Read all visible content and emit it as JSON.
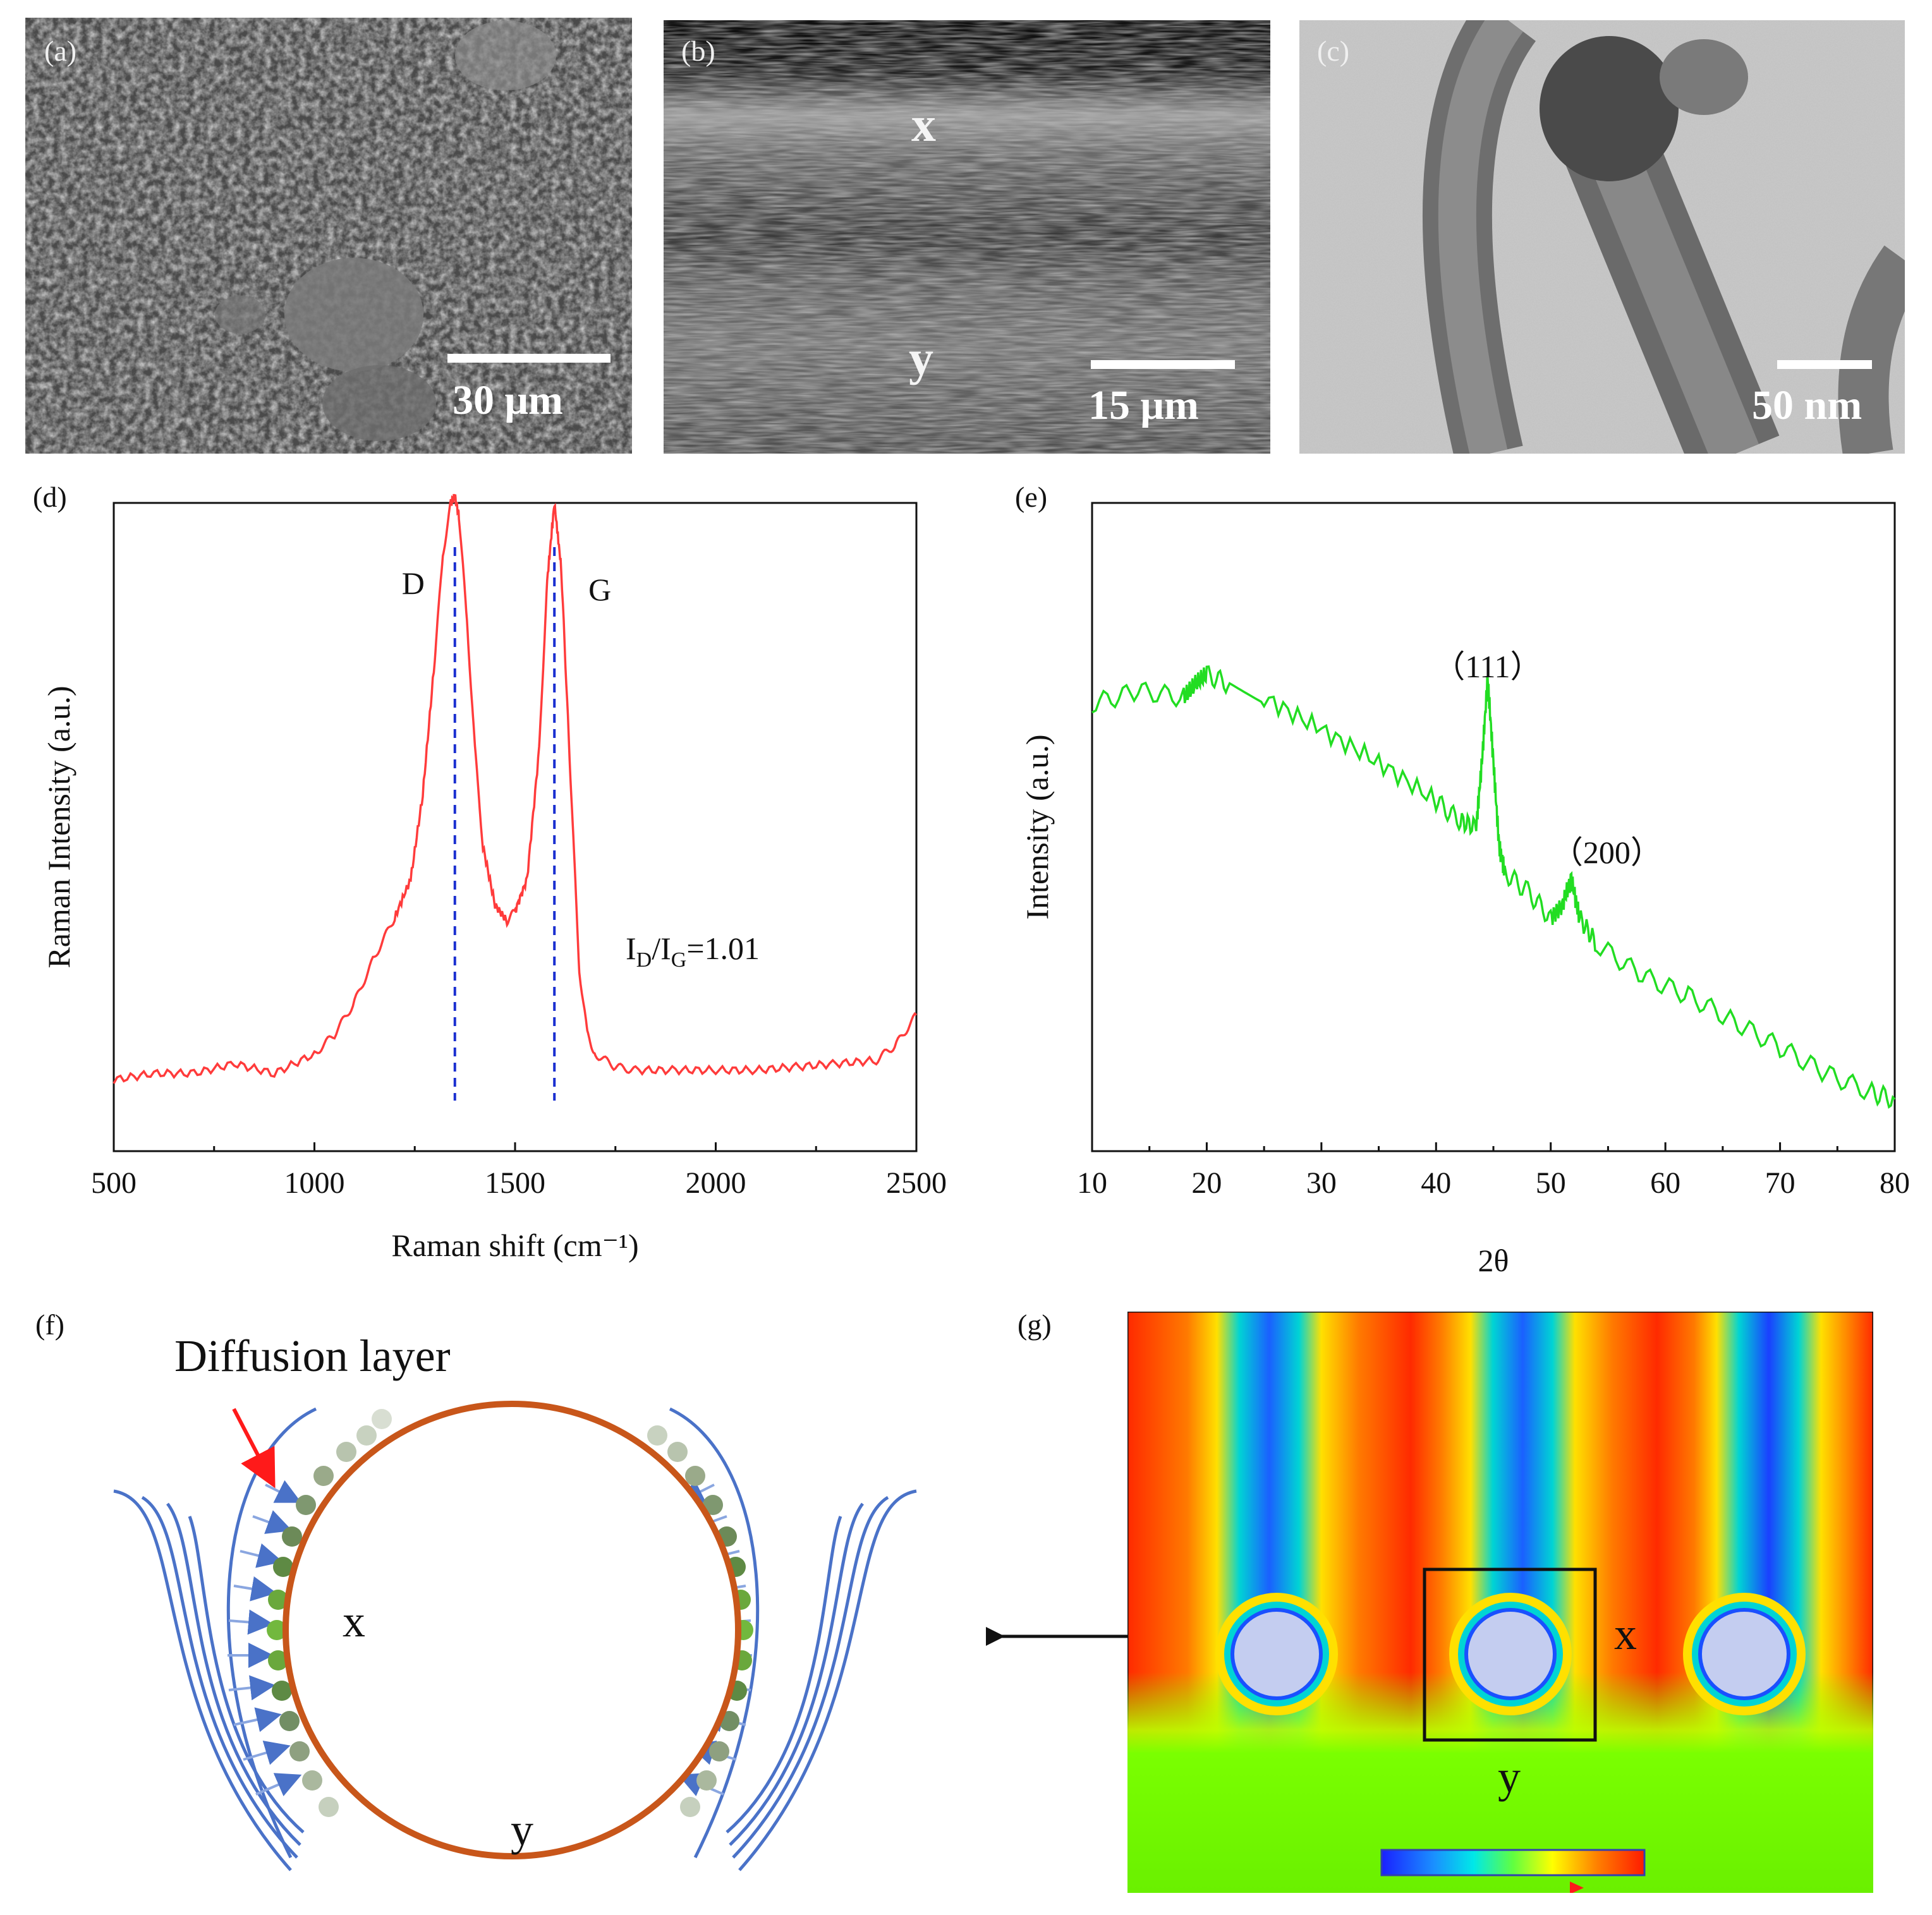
{
  "panels": {
    "a": {
      "label": "(a)",
      "scale": "30 μm"
    },
    "b": {
      "label": "(b)",
      "scale": "15 μm",
      "top_mark": "x",
      "bottom_mark": "y"
    },
    "c": {
      "label": "(c)",
      "scale": "50 nm"
    },
    "d": {
      "label": "(d)"
    },
    "e": {
      "label": "(e)"
    },
    "f": {
      "label": "(f)",
      "title": "Diffusion layer",
      "inner_mark": "x",
      "bottom_mark": "y"
    },
    "g": {
      "label": "(g)",
      "right_mark": "x",
      "bottom_mark": "y"
    }
  },
  "colors": {
    "raman_line": "#ff3b3b",
    "xrd_line": "#22dd22",
    "dash": "#1a2fd0",
    "circle_stroke": "#c8561a",
    "flow_lines": "#4a72c8",
    "arrow_red": "#ff1a1a"
  },
  "chart_data": [
    {
      "id": "raman",
      "type": "line",
      "xlabel": "Raman shift (cm⁻¹)",
      "ylabel": "Raman Intensity (a.u.)",
      "xlim": [
        500,
        2500
      ],
      "ylim": [
        0,
        1
      ],
      "xticks": [
        500,
        1000,
        1500,
        2000,
        2500
      ],
      "peak_labels": [
        {
          "text": "D",
          "x": 1350
        },
        {
          "text": "G",
          "x": 1598
        }
      ],
      "annotation": "ID/IG=1.01",
      "dashed_lines": [
        1350,
        1598
      ],
      "x": [
        500,
        600,
        700,
        800,
        900,
        1000,
        1050,
        1100,
        1150,
        1200,
        1240,
        1270,
        1300,
        1320,
        1340,
        1350,
        1360,
        1380,
        1400,
        1420,
        1450,
        1480,
        1500,
        1530,
        1560,
        1580,
        1598,
        1615,
        1640,
        1660,
        1680,
        1700,
        1750,
        1800,
        1900,
        2000,
        2100,
        2200,
        2300,
        2400,
        2450,
        2500
      ],
      "y": [
        0.11,
        0.12,
        0.12,
        0.135,
        0.12,
        0.15,
        0.18,
        0.23,
        0.3,
        0.36,
        0.42,
        0.55,
        0.76,
        0.92,
        1.0,
        1.01,
        0.98,
        0.82,
        0.62,
        0.47,
        0.38,
        0.355,
        0.37,
        0.42,
        0.62,
        0.88,
        1.0,
        0.9,
        0.55,
        0.28,
        0.18,
        0.15,
        0.13,
        0.125,
        0.125,
        0.125,
        0.125,
        0.13,
        0.135,
        0.14,
        0.165,
        0.21
      ]
    },
    {
      "id": "xrd",
      "type": "line",
      "xlabel": "2θ",
      "ylabel": "Intensity (a.u.)",
      "xlim": [
        10,
        80
      ],
      "ylim": [
        0,
        1
      ],
      "xticks": [
        10,
        20,
        30,
        40,
        50,
        60,
        70,
        80
      ],
      "peak_labels": [
        {
          "text": "（111）",
          "x": 44.5
        },
        {
          "text": "（200）",
          "x": 51.8
        }
      ],
      "x": [
        10,
        14,
        18,
        19,
        20,
        22,
        25,
        30,
        35,
        40,
        42,
        43.5,
        44,
        44.5,
        45,
        45.5,
        46,
        48,
        50,
        51,
        51.8,
        52.5,
        54,
        58,
        62,
        66,
        70,
        74,
        78,
        80
      ],
      "y": [
        0.69,
        0.71,
        0.7,
        0.72,
        0.735,
        0.72,
        0.7,
        0.65,
        0.6,
        0.54,
        0.51,
        0.5,
        0.6,
        0.73,
        0.6,
        0.47,
        0.43,
        0.4,
        0.36,
        0.38,
        0.42,
        0.36,
        0.32,
        0.27,
        0.24,
        0.2,
        0.16,
        0.12,
        0.09,
        0.08
      ]
    }
  ]
}
